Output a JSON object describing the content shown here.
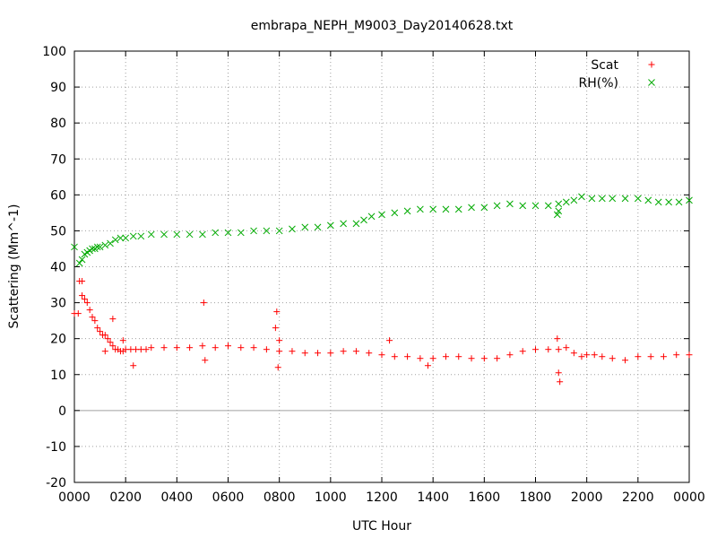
{
  "chart_data": {
    "type": "scatter",
    "title": "embrapa_NEPH_M9003_Day20140628.txt",
    "xlabel": "UTC Hour",
    "ylabel": "Scattering (Mm^-1)",
    "xlim": [
      0,
      24
    ],
    "ylim": [
      -20,
      100
    ],
    "grid": true,
    "legend_position": "top-right",
    "x_ticks": [
      {
        "v": 0,
        "label": "0000"
      },
      {
        "v": 2,
        "label": "0200"
      },
      {
        "v": 4,
        "label": "0400"
      },
      {
        "v": 6,
        "label": "0600"
      },
      {
        "v": 8,
        "label": "0800"
      },
      {
        "v": 10,
        "label": "1000"
      },
      {
        "v": 12,
        "label": "1200"
      },
      {
        "v": 14,
        "label": "1400"
      },
      {
        "v": 16,
        "label": "1600"
      },
      {
        "v": 18,
        "label": "1800"
      },
      {
        "v": 20,
        "label": "2000"
      },
      {
        "v": 22,
        "label": "2200"
      },
      {
        "v": 24,
        "label": "0000"
      }
    ],
    "y_ticks": [
      {
        "v": -20,
        "label": "-20"
      },
      {
        "v": -10,
        "label": "-10"
      },
      {
        "v": 0,
        "label": "0"
      },
      {
        "v": 10,
        "label": "10"
      },
      {
        "v": 20,
        "label": "20"
      },
      {
        "v": 30,
        "label": "30"
      },
      {
        "v": 40,
        "label": "40"
      },
      {
        "v": 50,
        "label": "50"
      },
      {
        "v": 60,
        "label": "60"
      },
      {
        "v": 70,
        "label": "70"
      },
      {
        "v": 80,
        "label": "80"
      },
      {
        "v": 90,
        "label": "90"
      },
      {
        "v": 100,
        "label": "100"
      }
    ],
    "series": [
      {
        "name": "Scat",
        "marker": "plus",
        "color": "#ff0000",
        "x": [
          0.0,
          0.2,
          0.3,
          0.4,
          0.5,
          0.6,
          0.7,
          0.8,
          0.9,
          1.0,
          1.1,
          1.2,
          1.3,
          1.4,
          1.5,
          1.6,
          1.7,
          1.8,
          1.9,
          2.0,
          2.2,
          2.4,
          2.6,
          2.8,
          3.0,
          3.5,
          4.0,
          4.5,
          5.0,
          5.5,
          6.0,
          6.5,
          7.0,
          7.5,
          8.0,
          8.5,
          9.0,
          9.5,
          10.0,
          10.5,
          11.0,
          11.5,
          12.0,
          12.5,
          13.0,
          13.5,
          14.0,
          14.5,
          15.0,
          15.5,
          16.0,
          16.5,
          17.0,
          17.5,
          18.0,
          18.5,
          18.9,
          19.2,
          19.5,
          19.8,
          20.0,
          20.3,
          20.6,
          21.0,
          21.5,
          22.0,
          22.5,
          23.0,
          23.5,
          24.0,
          0.15,
          0.3,
          1.2,
          1.5,
          1.9,
          2.3,
          5.05,
          5.1,
          7.85,
          7.9,
          7.95,
          8.0,
          12.3,
          13.8,
          18.9,
          18.95,
          18.85
        ],
        "y": [
          27,
          36,
          32,
          31,
          30,
          28,
          26,
          25,
          23,
          22,
          21,
          21,
          20,
          19,
          18,
          17,
          17,
          16.5,
          16.5,
          17,
          17,
          17,
          17,
          17,
          17.5,
          17.5,
          17.5,
          17.5,
          18,
          17.5,
          18,
          17.5,
          17.5,
          17,
          16.5,
          16.5,
          16,
          16,
          16,
          16.5,
          16.5,
          16,
          15.5,
          15,
          15,
          14.5,
          14.5,
          15,
          15,
          14.5,
          14.5,
          14.5,
          15.5,
          16.5,
          17,
          17,
          17,
          17.5,
          16,
          15,
          15.5,
          15.5,
          15,
          14.5,
          14,
          15,
          15,
          15,
          15.5,
          15.5,
          27,
          36,
          16.5,
          25.5,
          19.5,
          12.5,
          30,
          14,
          23,
          27.5,
          12,
          19.5,
          19.5,
          12.5,
          10.5,
          8,
          20
        ]
      },
      {
        "name": "RH(%)",
        "marker": "cross",
        "color": "#00aa00",
        "x": [
          0.0,
          0.2,
          0.3,
          0.4,
          0.5,
          0.6,
          0.7,
          0.8,
          0.9,
          1.0,
          1.2,
          1.4,
          1.6,
          1.8,
          2.0,
          2.3,
          2.6,
          3.0,
          3.5,
          4.0,
          4.5,
          5.0,
          5.5,
          6.0,
          6.5,
          7.0,
          7.5,
          8.0,
          8.5,
          9.0,
          9.5,
          10.0,
          10.5,
          11.0,
          11.3,
          11.6,
          12.0,
          12.5,
          13.0,
          13.5,
          14.0,
          14.5,
          15.0,
          15.5,
          16.0,
          16.5,
          17.0,
          17.5,
          18.0,
          18.5,
          18.9,
          19.2,
          19.5,
          19.8,
          20.2,
          20.6,
          21.0,
          21.5,
          22.0,
          22.4,
          22.8,
          23.2,
          23.6,
          24.0,
          18.85,
          18.9
        ],
        "y": [
          45.5,
          41,
          42,
          43.5,
          44,
          44.5,
          45,
          45,
          45.5,
          45.5,
          46,
          46.5,
          47.5,
          48,
          48,
          48.5,
          48.5,
          49,
          49,
          49,
          49,
          49,
          49.5,
          49.5,
          49.5,
          50,
          50,
          50,
          50.5,
          51,
          51,
          51.5,
          52,
          52,
          53,
          54,
          54.5,
          55,
          55.5,
          56,
          56,
          56,
          56,
          56.5,
          56.5,
          57,
          57.5,
          57,
          57,
          57,
          57.5,
          58,
          58.5,
          59.5,
          59,
          59,
          59,
          59,
          59,
          58.5,
          58,
          58,
          58,
          58.5,
          54.5,
          55.5
        ]
      }
    ]
  }
}
